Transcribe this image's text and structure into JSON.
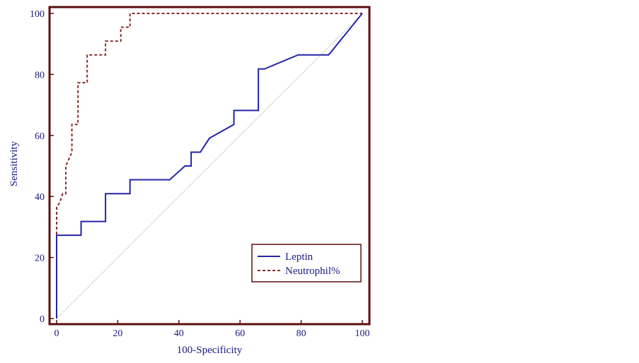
{
  "chart_data": {
    "type": "line",
    "xlabel": "100-Specificity",
    "ylabel": "Sensitivity",
    "xlim": [
      0,
      100
    ],
    "ylim": [
      0,
      100
    ],
    "x_ticks": [
      "0",
      "20",
      "40",
      "60",
      "80",
      "100"
    ],
    "y_ticks": [
      "0",
      "20",
      "40",
      "60",
      "80",
      "100"
    ],
    "legend": {
      "placement": "bottom-right"
    },
    "grid": false,
    "colors": {
      "frame": "#5b0f0f",
      "leptin": "#2424a8",
      "neutrophil": "#8b2a2a",
      "diagonal": "#9a9a9a",
      "text": "#1a1a80"
    },
    "series": [
      {
        "name": "Leptin",
        "style": "solid",
        "x": [
          0,
          0,
          8,
          8,
          16,
          16,
          24,
          24,
          37,
          42,
          44,
          44,
          47,
          50,
          58,
          58,
          66,
          66,
          68,
          79,
          89,
          100
        ],
        "y": [
          0,
          27.3,
          27.3,
          31.8,
          31.8,
          40.9,
          40.9,
          45.5,
          45.5,
          50,
          50,
          54.5,
          54.5,
          59.1,
          63.6,
          68.2,
          68.2,
          81.8,
          81.8,
          86.4,
          86.4,
          100
        ]
      },
      {
        "name": "Neutrophil%",
        "style": "dashed",
        "x": [
          0,
          0,
          1,
          2,
          3,
          3,
          5,
          5,
          7,
          7,
          8,
          8,
          10,
          10,
          16,
          16,
          21,
          21,
          24,
          24,
          100
        ],
        "y": [
          0,
          36.4,
          38,
          40.9,
          40.9,
          50,
          54.5,
          63.6,
          63.6,
          77.3,
          77.3,
          77.3,
          77.3,
          86.4,
          86.4,
          90.9,
          90.9,
          95.5,
          95.5,
          100,
          100
        ]
      },
      {
        "name": "",
        "style": "dotted-reference",
        "x": [
          0,
          100
        ],
        "y": [
          0,
          100
        ]
      }
    ]
  }
}
